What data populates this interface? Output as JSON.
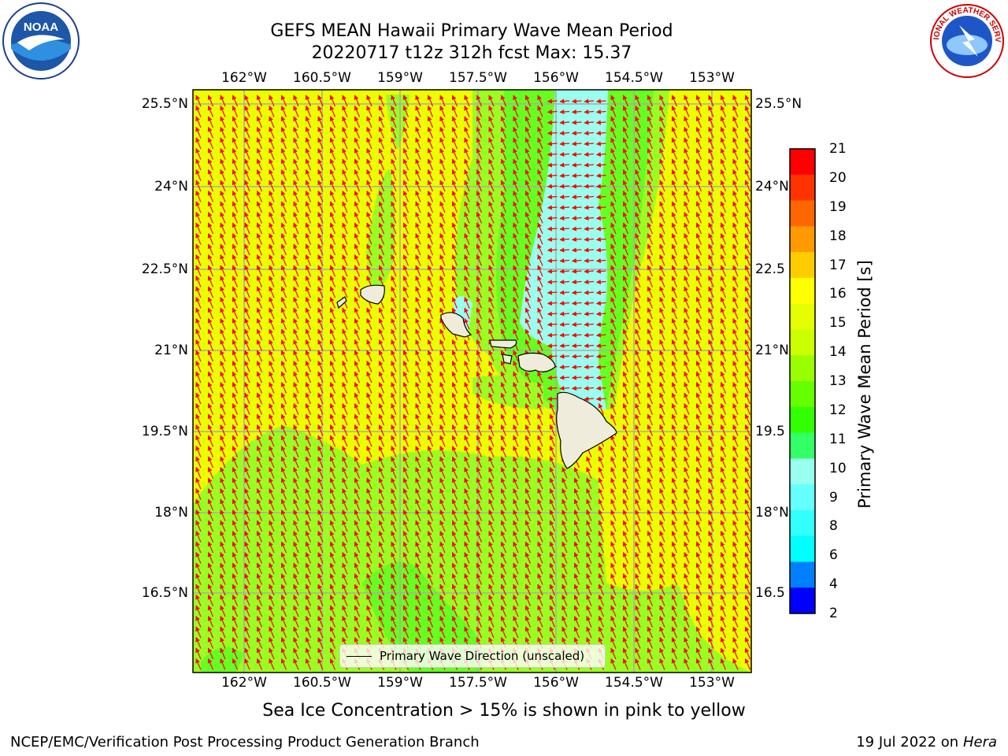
{
  "title": {
    "line1": "GEFS MEAN Hawaii Primary Wave Mean Period",
    "line2": "20220717 t12z 312h fcst   Max: 15.37"
  },
  "axes": {
    "lon_ticks": [
      "162°W",
      "160.5°W",
      "159°W",
      "157.5°W",
      "156°W",
      "154.5°W",
      "153°W"
    ],
    "lat_ticks": [
      "25.5°N",
      "24°N",
      "22.5°N",
      "21°N",
      "19.5°N",
      "18°N",
      "16.5°N"
    ],
    "lat_ticks_right": [
      "25.5°N",
      "24°N",
      "22.5",
      "21°N",
      "19.5",
      "18°N",
      "16.5"
    ]
  },
  "legend": {
    "label": "Primary Wave Direction (unscaled)"
  },
  "colorbar": {
    "label": "Primary Wave Mean Period [s]",
    "ticks": [
      "21",
      "20",
      "19",
      "18",
      "17",
      "16",
      "15",
      "14",
      "13",
      "12",
      "11",
      "10",
      "9",
      "8",
      "6",
      "4",
      "2"
    ],
    "colors": [
      "#ff0000",
      "#ff3300",
      "#ff6600",
      "#ff9900",
      "#ffcc00",
      "#ffff00",
      "#e5ff00",
      "#ccff00",
      "#99ff00",
      "#66ff00",
      "#33ff00",
      "#33ff66",
      "#99ffee",
      "#66ffff",
      "#33ffff",
      "#00ffff",
      "#0080ff",
      "#0000ff"
    ]
  },
  "map_colors": {
    "period_15": "#eaff00",
    "period_13": "#99ff22",
    "period_12": "#66ff22",
    "period_10": "#99ffee",
    "land": "#efecdc",
    "arrow": "#ff0000"
  },
  "subtitle": "Sea Ice Concentration > 15% is shown in pink to yellow",
  "footer": {
    "left": "NCEP/EMC/Verification Post Processing Product Generation Branch",
    "right_date": "19 Jul 2022 on ",
    "right_host": "Hera"
  },
  "logos": {
    "noaa": "NOAA",
    "nws": "NATIONAL WEATHER SERVICE"
  }
}
